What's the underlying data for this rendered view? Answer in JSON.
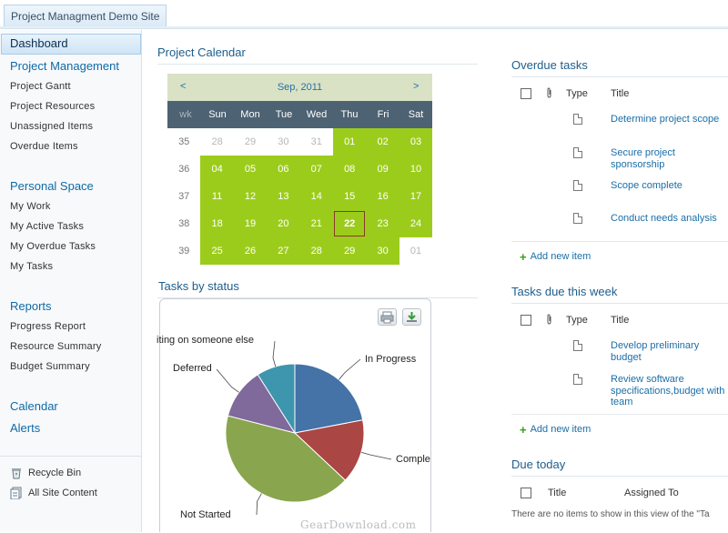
{
  "site": {
    "title": "Project Managment Demo Site"
  },
  "nav": {
    "dashboard": "Dashboard",
    "project_management": "Project Management",
    "pm_items": [
      "Project Gantt",
      "Project Resources",
      "Unassigned Items",
      "Overdue Items"
    ],
    "personal_space": "Personal Space",
    "ps_items": [
      "My Work",
      "My Active Tasks",
      "My Overdue Tasks",
      "My Tasks"
    ],
    "reports": "Reports",
    "report_items": [
      "Progress Report",
      "Resource Summary",
      "Budget Summary"
    ],
    "calendar": "Calendar",
    "alerts": "Alerts",
    "recycle_bin": "Recycle Bin",
    "all_site_content": "All Site Content"
  },
  "calendar": {
    "section_title": "Project Calendar",
    "prev": "<",
    "next": ">",
    "month": "Sep, 2011",
    "day_headers": [
      "wk",
      "Sun",
      "Mon",
      "Tue",
      "Wed",
      "Thu",
      "Fri",
      "Sat"
    ],
    "weeks": [
      {
        "wk": "35",
        "days": [
          "28",
          "29",
          "30",
          "31",
          "01",
          "02",
          "03"
        ]
      },
      {
        "wk": "36",
        "days": [
          "04",
          "05",
          "06",
          "07",
          "08",
          "09",
          "10"
        ]
      },
      {
        "wk": "37",
        "days": [
          "11",
          "12",
          "13",
          "14",
          "15",
          "16",
          "17"
        ]
      },
      {
        "wk": "38",
        "days": [
          "18",
          "19",
          "20",
          "21",
          "22",
          "23",
          "24"
        ]
      },
      {
        "wk": "39",
        "days": [
          "25",
          "26",
          "27",
          "28",
          "29",
          "30",
          "01"
        ]
      }
    ],
    "today": "22",
    "colors": {
      "highlight": "#9ccc1b",
      "header": "#4d6272",
      "month_bar": "#d9e2c4"
    }
  },
  "tasks_by_status": {
    "section_title": "Tasks by status",
    "labels": {
      "waiting": "iting on someone else",
      "in_progress": "In Progress",
      "deferred": "Deferred",
      "completed": "Comple",
      "not_started": "Not Started"
    },
    "chart_data": {
      "type": "pie",
      "categories": [
        "In Progress",
        "Completed",
        "Not Started",
        "Deferred",
        "Waiting on someone else"
      ],
      "values": [
        22,
        15,
        42,
        12,
        9
      ],
      "colors": [
        "#4572a7",
        "#aa4643",
        "#89a54e",
        "#80699b",
        "#3d96ae"
      ]
    }
  },
  "overdue": {
    "section_title": "Overdue tasks",
    "col_type": "Type",
    "col_title": "Title",
    "items": [
      "Determine project scope",
      "Secure project sponsorship",
      "Scope complete",
      "Conduct needs analysis"
    ],
    "add_new": "Add new item"
  },
  "due_week": {
    "section_title": "Tasks due this week",
    "col_type": "Type",
    "col_title": "Title",
    "items": [
      "Develop preliminary budget",
      "Review software specifications,budget with team"
    ],
    "add_new": "Add new item"
  },
  "due_today": {
    "section_title": "Due today",
    "col_title": "Title",
    "col_assigned": "Assigned To",
    "empty": "There are no items to show in this view of the \"Ta"
  },
  "watermark": "GearDownload.com"
}
